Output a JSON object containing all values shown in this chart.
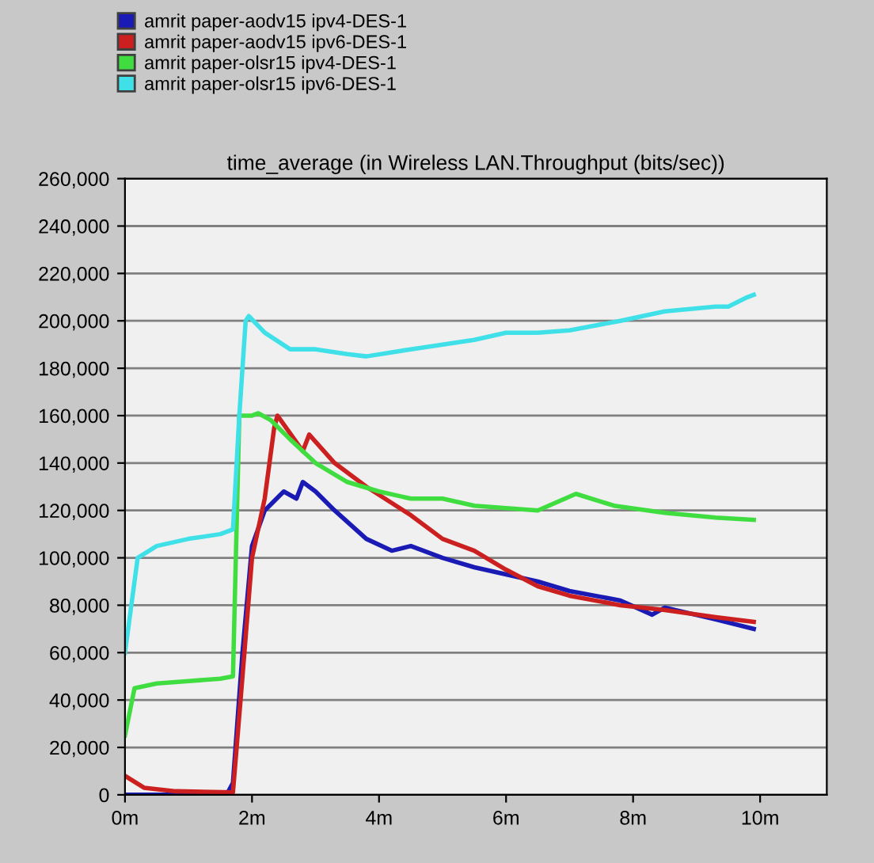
{
  "chart_data": {
    "type": "line",
    "title": "time_average (in Wireless LAN.Throughput (bits/sec))",
    "xlim": [
      0,
      11.05
    ],
    "ylim": [
      0,
      260000
    ],
    "xticks": [
      {
        "value": 0,
        "label": "0m"
      },
      {
        "value": 2,
        "label": "2m"
      },
      {
        "value": 4,
        "label": "4m"
      },
      {
        "value": 6,
        "label": "6m"
      },
      {
        "value": 8,
        "label": "8m"
      },
      {
        "value": 10,
        "label": "10m"
      }
    ],
    "yticks": [
      {
        "value": 0,
        "label": "0"
      },
      {
        "value": 20000,
        "label": "20,000"
      },
      {
        "value": 40000,
        "label": "40,000"
      },
      {
        "value": 60000,
        "label": "60,000"
      },
      {
        "value": 80000,
        "label": "80,000"
      },
      {
        "value": 100000,
        "label": "100,000"
      },
      {
        "value": 120000,
        "label": "120,000"
      },
      {
        "value": 140000,
        "label": "140,000"
      },
      {
        "value": 160000,
        "label": "160,000"
      },
      {
        "value": 180000,
        "label": "180,000"
      },
      {
        "value": 200000,
        "label": "200,000"
      },
      {
        "value": 220000,
        "label": "220,000"
      },
      {
        "value": 240000,
        "label": "240,000"
      },
      {
        "value": 260000,
        "label": "260,000"
      }
    ],
    "grid": "y",
    "legend": "top left",
    "marker": "none",
    "line_style": "solid",
    "series": [
      {
        "name": "amrit paper-aodv15 ipv4-DES-1",
        "color": "#1a1ab4",
        "x": [
          0,
          1.6,
          1.7,
          1.85,
          2.0,
          2.2,
          2.5,
          2.7,
          2.8,
          3.0,
          3.3,
          3.8,
          4.2,
          4.5,
          5,
          5.5,
          6,
          6.5,
          7,
          7.8,
          8.3,
          8.5,
          9.3,
          9.9
        ],
        "values": [
          0,
          0,
          5000,
          60000,
          105000,
          120000,
          128000,
          125000,
          132000,
          128000,
          120000,
          108000,
          103000,
          105000,
          100000,
          96000,
          93000,
          90000,
          86000,
          82000,
          76000,
          79000,
          74000,
          70000
        ]
      },
      {
        "name": "amrit paper-aodv15 ipv6-DES-1",
        "color": "#cc2020",
        "x": [
          0,
          0.3,
          0.8,
          1.7,
          1.85,
          2.0,
          2.2,
          2.35,
          2.4,
          2.8,
          2.9,
          3.3,
          3.8,
          4.5,
          5,
          5.5,
          6,
          6.5,
          7,
          7.8,
          8.5,
          9.3,
          9.9
        ],
        "values": [
          8000,
          3000,
          1500,
          1000,
          50000,
          100000,
          125000,
          155000,
          160000,
          145000,
          152000,
          140000,
          130000,
          118000,
          108000,
          103000,
          95000,
          88000,
          84000,
          80000,
          78000,
          75000,
          73000
        ]
      },
      {
        "name": "amrit paper-olsr15 ipv4-DES-1",
        "color": "#40dd40",
        "x": [
          0,
          0.15,
          0.5,
          1,
          1.5,
          1.7,
          1.8,
          2.0,
          2.1,
          2.3,
          2.6,
          3,
          3.5,
          4,
          4.5,
          5,
          5.5,
          6,
          6.5,
          7.1,
          7.7,
          8.5,
          9.3,
          9.9
        ],
        "values": [
          25000,
          45000,
          47000,
          48000,
          49000,
          50000,
          160000,
          160000,
          161000,
          158000,
          150000,
          140000,
          132000,
          128000,
          125000,
          125000,
          122000,
          121000,
          120000,
          127000,
          122000,
          119000,
          117000,
          116000
        ]
      },
      {
        "name": "amrit paper-olsr15 ipv6-DES-1",
        "color": "#40e0e8",
        "x": [
          0,
          0.2,
          0.5,
          1,
          1.5,
          1.7,
          1.8,
          1.9,
          1.95,
          2.2,
          2.6,
          3,
          3.5,
          3.8,
          4.5,
          5,
          5.5,
          6,
          6.5,
          7,
          7.8,
          8.5,
          9.3,
          9.5,
          9.8,
          9.9
        ],
        "values": [
          60000,
          100000,
          105000,
          108000,
          110000,
          112000,
          160000,
          200000,
          202000,
          195000,
          188000,
          188000,
          186000,
          185000,
          188000,
          190000,
          192000,
          195000,
          195000,
          196000,
          200000,
          204000,
          206000,
          206000,
          210000,
          211000
        ]
      }
    ]
  }
}
